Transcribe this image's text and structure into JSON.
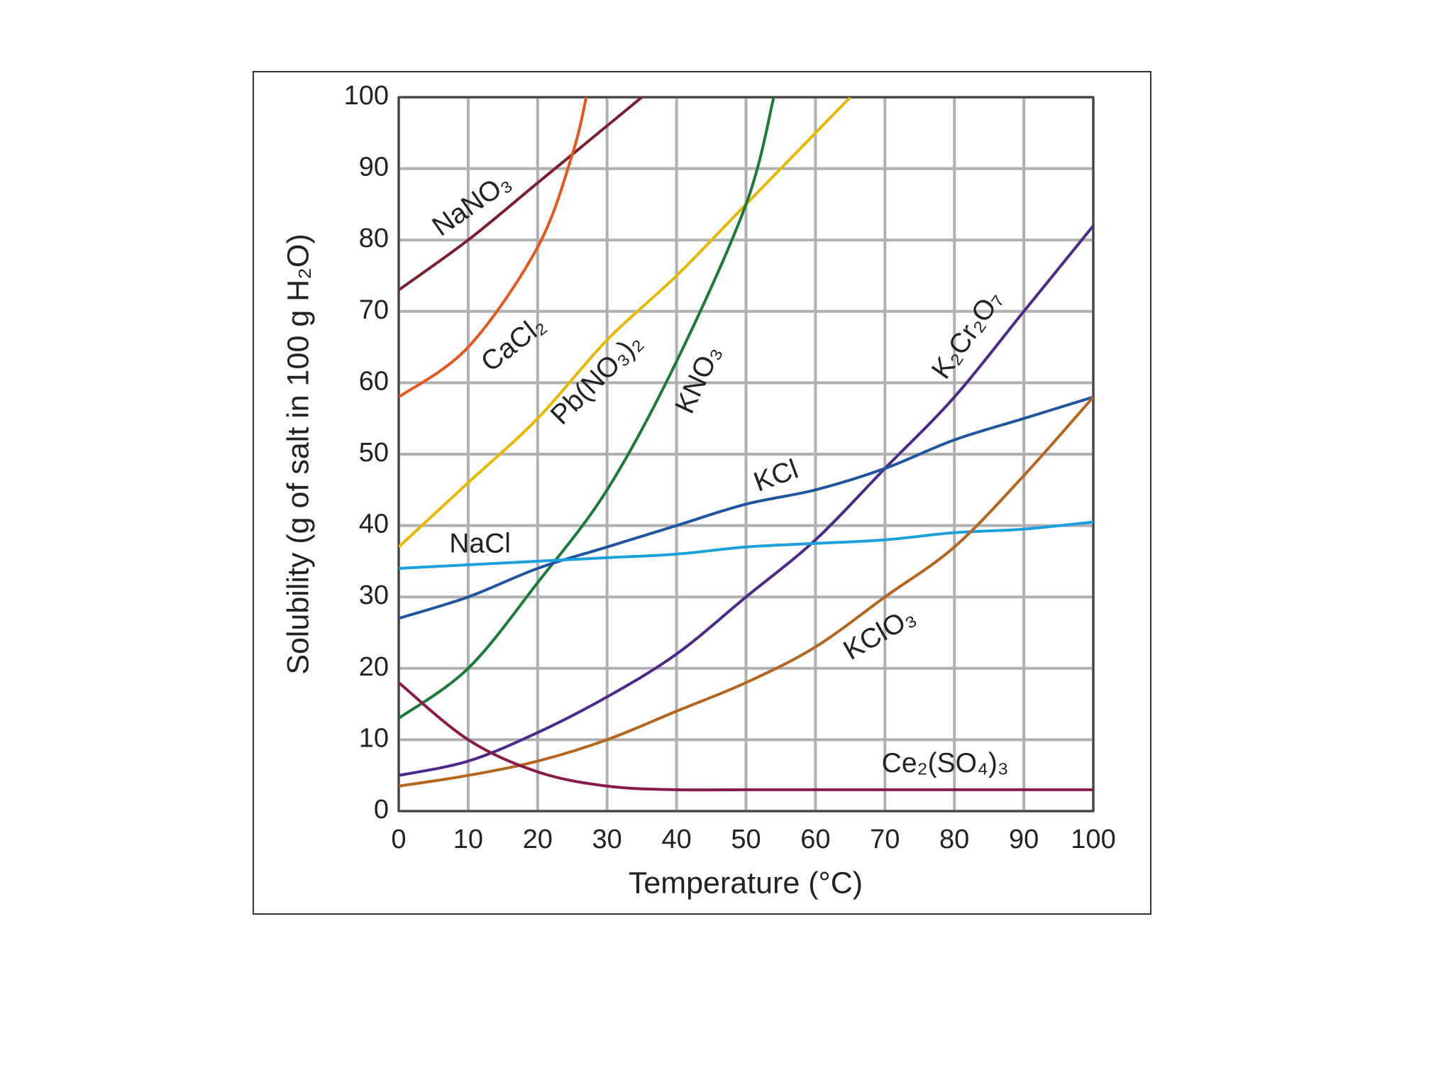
{
  "chart_data": {
    "type": "line",
    "xlabel": "Temperature (°C)",
    "ylabel": "Solubility (g of salt in 100 g H₂O)",
    "xlim": [
      0,
      100
    ],
    "ylim": [
      0,
      100
    ],
    "xticks": [
      0,
      10,
      20,
      30,
      40,
      50,
      60,
      70,
      80,
      90,
      100
    ],
    "yticks": [
      0,
      10,
      20,
      30,
      40,
      50,
      60,
      70,
      80,
      90,
      100
    ],
    "grid": true,
    "series": [
      {
        "name": "NaNO₃",
        "color": "#7a1f2e",
        "x": [
          0,
          10,
          20,
          30,
          35
        ],
        "values": [
          73,
          80,
          88,
          96,
          100
        ]
      },
      {
        "name": "CaCl₂",
        "color": "#e8561f",
        "x": [
          0,
          10,
          20,
          25,
          27
        ],
        "values": [
          58,
          65,
          79,
          92,
          100
        ]
      },
      {
        "name": "Pb(NO₃)₂",
        "color": "#e8b800",
        "x": [
          0,
          10,
          20,
          30,
          40,
          50,
          60,
          65
        ],
        "values": [
          37,
          46,
          55,
          66,
          75,
          85,
          95,
          100
        ]
      },
      {
        "name": "KNO₃",
        "color": "#1b7a3a",
        "x": [
          0,
          10,
          20,
          30,
          40,
          50,
          54
        ],
        "values": [
          13,
          20,
          32,
          45,
          63,
          85,
          100
        ]
      },
      {
        "name": "K₂Cr₂O₇",
        "color": "#4b2a8a",
        "x": [
          0,
          10,
          20,
          30,
          40,
          50,
          60,
          70,
          80,
          90,
          100
        ],
        "values": [
          5,
          7,
          11,
          16,
          22,
          30,
          38,
          48,
          58,
          70,
          82
        ]
      },
      {
        "name": "KCl",
        "color": "#1e55a0",
        "x": [
          0,
          10,
          20,
          30,
          40,
          50,
          60,
          70,
          80,
          90,
          100
        ],
        "values": [
          27,
          30,
          34,
          37,
          40,
          43,
          45,
          48,
          52,
          55,
          58
        ]
      },
      {
        "name": "NaCl",
        "color": "#1aa0dc",
        "x": [
          0,
          10,
          20,
          30,
          40,
          50,
          60,
          70,
          80,
          90,
          100
        ],
        "values": [
          34,
          34.5,
          35,
          35.5,
          36,
          37,
          37.5,
          38,
          39,
          39.5,
          40.5
        ]
      },
      {
        "name": "KClO₃",
        "color": "#b5651d",
        "x": [
          0,
          10,
          20,
          30,
          40,
          50,
          60,
          70,
          80,
          90,
          100
        ],
        "values": [
          3.5,
          5,
          7,
          10,
          14,
          18,
          23,
          30,
          37,
          47,
          58
        ]
      },
      {
        "name": "Ce₂(SO₄)₃",
        "color": "#8a1a4a",
        "x": [
          0,
          10,
          20,
          30,
          40,
          50,
          60,
          70,
          80,
          90,
          100
        ],
        "values": [
          18,
          10,
          5.5,
          3.5,
          3,
          3,
          3,
          3,
          3,
          3,
          3
        ]
      }
    ]
  }
}
